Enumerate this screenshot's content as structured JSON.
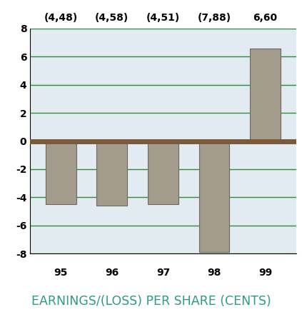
{
  "chart_data": {
    "type": "bar",
    "title": "EARNINGS/(LOSS) PER SHARE (CENTS)",
    "categories": [
      "95",
      "96",
      "97",
      "98",
      "99"
    ],
    "values": [
      -4.48,
      -4.58,
      -4.51,
      -7.88,
      6.6
    ],
    "value_labels": [
      "(4,48)",
      "(4,58)",
      "(4,51)",
      "(7,88)",
      "6,60"
    ],
    "data_labels": true,
    "color": "#a39c8c",
    "ylim": [
      -8,
      8
    ],
    "yticks": [
      -8,
      -6,
      -4,
      -2,
      0,
      2,
      4,
      6,
      8
    ],
    "grid": true
  }
}
